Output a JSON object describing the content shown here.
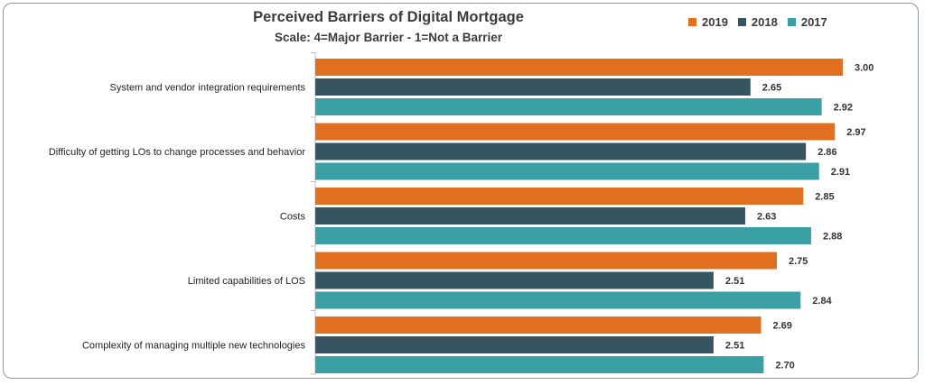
{
  "chart_data": {
    "type": "bar",
    "orientation": "horizontal",
    "title": "Perceived Barriers of Digital Mortgage",
    "subtitle": "Scale:  4=Major Barrier - 1=Not a Barrier",
    "categories": [
      "System and vendor integration requirements",
      "Difficulty of getting LOs to change processes and behavior",
      "Costs",
      "Limited capabilities of LOS",
      "Complexity of managing multiple new technologies"
    ],
    "series": [
      {
        "name": "2019",
        "color": "#e07020",
        "values": [
          3.0,
          2.97,
          2.85,
          2.75,
          2.69
        ]
      },
      {
        "name": "2018",
        "color": "#365561",
        "values": [
          2.65,
          2.86,
          2.63,
          2.51,
          2.51
        ]
      },
      {
        "name": "2017",
        "color": "#3ba0a6",
        "values": [
          2.92,
          2.91,
          2.88,
          2.84,
          2.7
        ]
      }
    ],
    "value_labels": [
      [
        "3.00",
        "2.65",
        "2.92"
      ],
      [
        "2.97",
        "2.86",
        "2.91"
      ],
      [
        "2.85",
        "2.63",
        "2.88"
      ],
      [
        "2.75",
        "2.51",
        "2.84"
      ],
      [
        "2.69",
        "2.51",
        "2.70"
      ]
    ],
    "xlim": [
      1.0,
      3.0
    ],
    "legend_position": "top-right",
    "grid": false
  }
}
